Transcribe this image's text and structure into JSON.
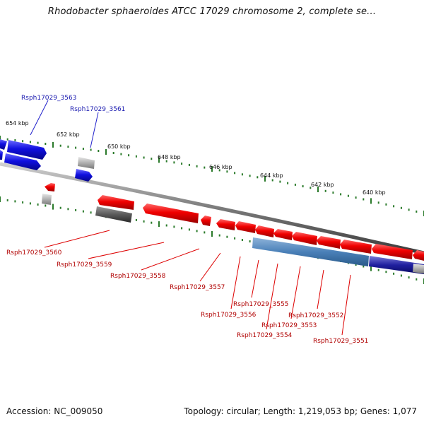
{
  "title": "Rhodobacter sphaeroides ATCC 17029 chromosome 2, complete se...",
  "accession": "Accession: NC_009050",
  "summary": "Topology: circular; Length: 1,219,053 bp; Genes: 1,077",
  "colors": {
    "forward_gene": "#1010e0",
    "reverse_gene": "#e00000",
    "pseudo_gene": "#b0b0b0",
    "rna_gene": "#4a80b8",
    "backbone": "#8a8a8a",
    "tick": "#2a7a2a"
  },
  "scale": {
    "unit": "kbp",
    "labels": [
      "654 kbp",
      "652 kbp",
      "650 kbp",
      "648 kbp",
      "646 kbp",
      "644 kbp",
      "642 kbp",
      "640 kbp"
    ]
  },
  "forward_genes": [
    {
      "label": "Rsph17029_3563"
    },
    {
      "label": "Rsph17029_3561"
    }
  ],
  "reverse_genes": [
    {
      "label": "Rsph17029_3560"
    },
    {
      "label": "Rsph17029_3559"
    },
    {
      "label": "Rsph17029_3558"
    },
    {
      "label": "Rsph17029_3557"
    },
    {
      "label": "Rsph17029_3556"
    },
    {
      "label": "Rsph17029_3555"
    },
    {
      "label": "Rsph17029_3554"
    },
    {
      "label": "Rsph17029_3553"
    },
    {
      "label": "Rsph17029_3552"
    },
    {
      "label": "Rsph17029_3551"
    }
  ]
}
